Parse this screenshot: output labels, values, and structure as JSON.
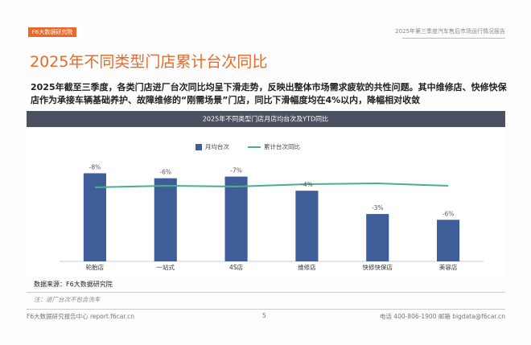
{
  "header": {
    "logo": "F6大数据研究院",
    "report": "2025年第三季度汽车售后市场运行情况报告"
  },
  "title": "2025年不同类型门店累计台次同比",
  "summary": "2025年截至三季度，各类门店进厂台次同比均呈下滑走势，反映出整体市场需求疲软的共性问题。其中维修店、快修快保店作为承接车辆基础养护、故障维修的“刚需场景”门店，同比下滑幅度均在4%以内，降幅相对收敛",
  "chart_data": {
    "type": "bar-line",
    "title": "2025年不同类型门店月店均台次及YTD同比",
    "categories": [
      "轮胎店",
      "一站式",
      "4S店",
      "维修店",
      "快修快保店",
      "美容店"
    ],
    "series": [
      {
        "name": "月均台次",
        "color": "#3f5e98",
        "values": [
          106,
          100,
          102,
          85,
          57,
          50
        ]
      },
      {
        "name": "累计台次同比",
        "color": "#4cae8c",
        "axis": "y2",
        "values": [
          -8,
          -6,
          -7,
          -4,
          -3,
          -6
        ],
        "value_labels": [
          "-8%",
          "-6%",
          "-7%",
          "-4%",
          "-3%",
          "-6%"
        ]
      }
    ],
    "ylim": [
      0,
      150
    ],
    "y2lim": [
      -100,
      55
    ]
  },
  "source": "数据来源：F6大数据研究院",
  "note": "注：进厂台次不包含洗车",
  "footer": {
    "left": "F6大数据研究报告中心 report.f6car.cn",
    "page": "5",
    "right": "电话 400-806-1900 邮箱 bigdata@f6car.cn"
  }
}
